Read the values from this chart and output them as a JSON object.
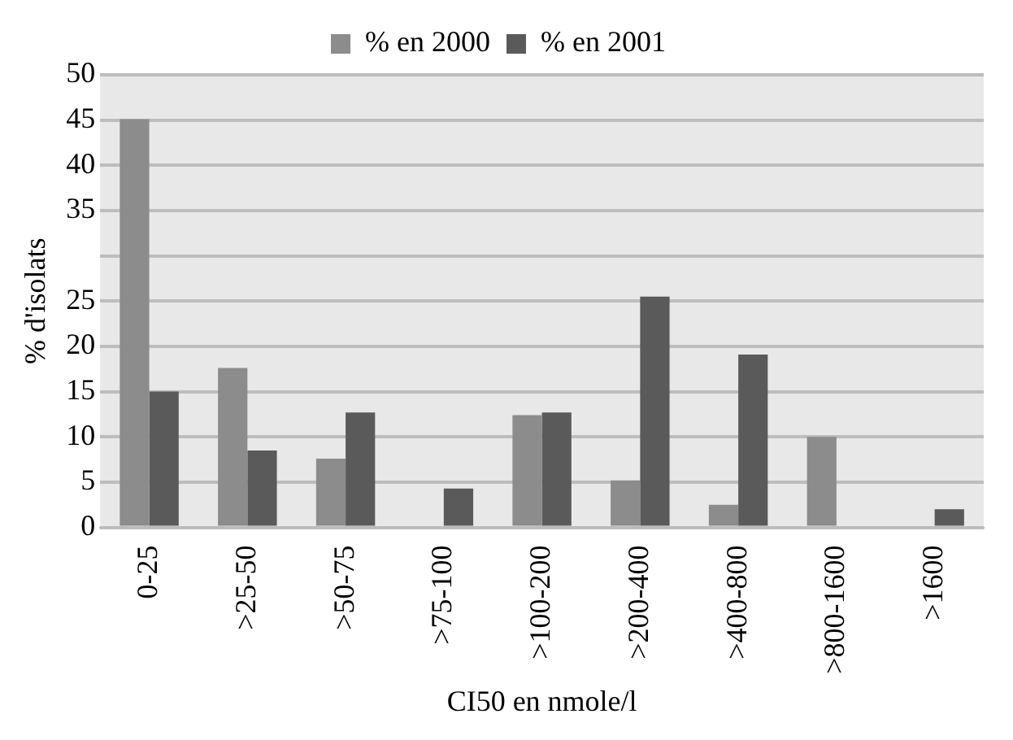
{
  "chart_data": {
    "type": "bar",
    "xlabel": "CI50 en nmole/l",
    "ylabel": "% d'isolats",
    "categories": [
      "0-25",
      ">25-50",
      ">50-75",
      ">75-100",
      ">100-200",
      ">200-400",
      ">400-800",
      ">800-1600",
      ">1600"
    ],
    "series": [
      {
        "name": "% en 2000",
        "color": "#8c8c8c",
        "values": [
          45.1,
          17.6,
          7.6,
          0,
          12.4,
          5.2,
          2.5,
          10,
          0
        ]
      },
      {
        "name": "% en 2001",
        "color": "#5a5a5a",
        "values": [
          15,
          8.5,
          12.7,
          4.3,
          12.7,
          25.5,
          19.1,
          0,
          2
        ]
      }
    ],
    "ylim": [
      0,
      50
    ],
    "yticks": [
      0,
      5,
      10,
      15,
      20,
      25,
      {
        "value": 30,
        "label": null
      },
      35,
      40,
      45,
      50
    ],
    "grid": "y",
    "legend": "top"
  }
}
